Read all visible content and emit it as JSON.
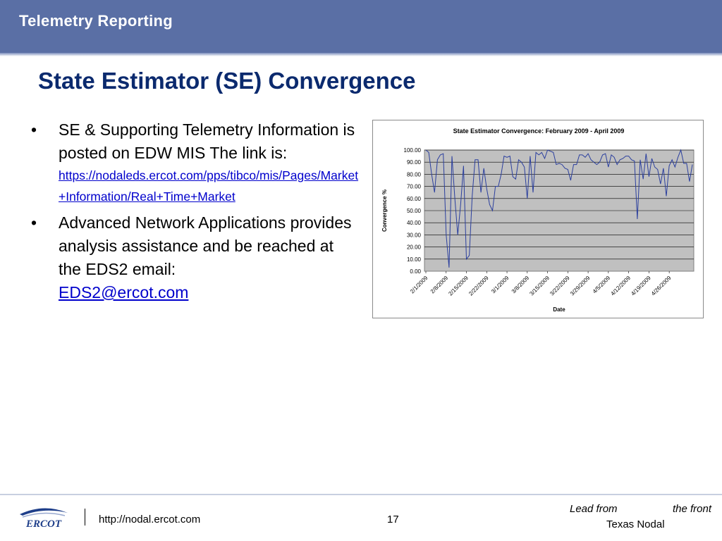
{
  "header": {
    "section_title": "Telemetry Reporting"
  },
  "slide": {
    "title": "State Estimator (SE) Convergence",
    "bullets": [
      {
        "text": "SE & Supporting Telemetry Information is posted on EDW MIS The link is:",
        "link": "https://nodaleds.ercot.com/pps/tibco/mis/Pages/Market+Information/Real+Time+Market"
      },
      {
        "text": "Advanced Network Applications provides analysis assistance and be reached at the EDS2 email:",
        "link": "EDS2@ercot.com"
      }
    ],
    "bullet_symbol": "•"
  },
  "chart_data": {
    "type": "line",
    "title": "State Estimator Convergence: February 2009 - April 2009",
    "xlabel": "Date",
    "ylabel": "Convergence %",
    "ylim": [
      0,
      100
    ],
    "y_ticks": [
      "0.00",
      "10.00",
      "20.00",
      "30.00",
      "40.00",
      "50.00",
      "60.00",
      "70.00",
      "80.00",
      "90.00",
      "100.00"
    ],
    "x_ticks": [
      "2/1/2009",
      "2/8/2009",
      "2/15/2009",
      "2/22/2009",
      "3/1/2009",
      "3/8/2009",
      "3/15/2009",
      "3/22/2009",
      "3/29/2009",
      "4/5/2009",
      "4/12/2009",
      "4/19/2009",
      "4/26/2009"
    ],
    "x_start": "2/1/2009",
    "x_end": "4/30/2009",
    "grid": true,
    "line_color": "#2b3f9e",
    "plot_background": "#c0c0c0",
    "series": [
      {
        "values": [
          100,
          98,
          80,
          65,
          92,
          96,
          97,
          30,
          3,
          95,
          60,
          30,
          55,
          87,
          10,
          13,
          62,
          92,
          92,
          65,
          85,
          68,
          55,
          50,
          70,
          70,
          80,
          95,
          94,
          95,
          78,
          76,
          92,
          90,
          86,
          60,
          95,
          65,
          98,
          96,
          98,
          93,
          100,
          99,
          98,
          88,
          89,
          88,
          85,
          84,
          75,
          88,
          88,
          96,
          96,
          94,
          97,
          92,
          90,
          88,
          90,
          96,
          97,
          86,
          96,
          94,
          88,
          92,
          93,
          95,
          95,
          92,
          91,
          43,
          92,
          76,
          97,
          78,
          93,
          86,
          84,
          72,
          85,
          62,
          87,
          92,
          86,
          94,
          100,
          89,
          89,
          74,
          88
        ]
      }
    ]
  },
  "footer": {
    "logo_text": "ERCOT",
    "url": "http://nodal.ercot.com",
    "page_number": "17",
    "tagline_lead": "Lead from",
    "tagline_front": "the front",
    "tagline_sub": "Texas Nodal"
  }
}
